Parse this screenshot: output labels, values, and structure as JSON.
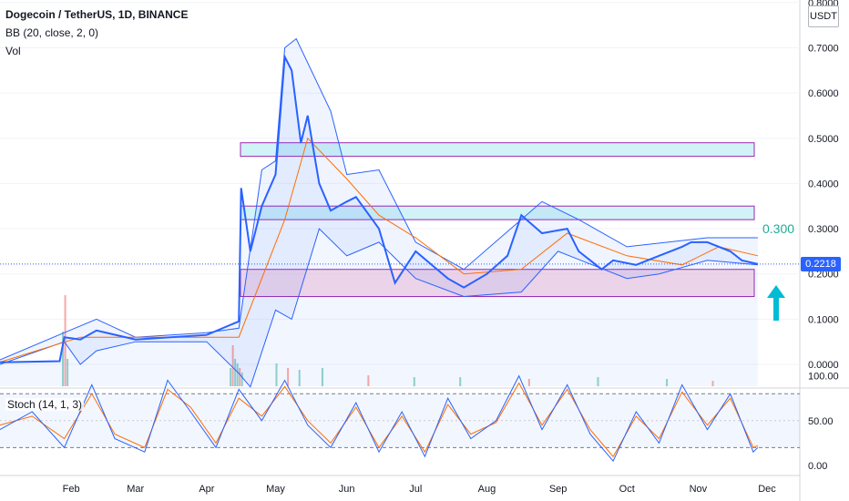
{
  "legend": {
    "title": "Dogecoin / TetherUS, 1D, BINANCE",
    "bb": "BB (20, close, 2, 0)",
    "vol": "Vol",
    "stoch": "Stoch (14, 1, 3)"
  },
  "axis": {
    "currency": "USDT",
    "current_price": "0.2218",
    "level_label": "0.300"
  },
  "colors": {
    "price_line": "#2962ff",
    "bands": "#2962ff",
    "basis": "#ff6d00",
    "stoch_k": "#2962ff",
    "stoch_d": "#ff6d00",
    "green_zone": "#b2ebf2",
    "pink_zone": "#f3c3d8",
    "zone_border": "#9c27b0",
    "arrow": "#00bcd4",
    "vol_up": "#26a69a",
    "vol_down": "#ef5350"
  },
  "chart_data": [
    {
      "type": "line",
      "title": "Dogecoin / TetherUS, 1D, BINANCE",
      "series": [
        {
          "name": "Dogecoin / TetherUS",
          "x": [
            "2021-01-01",
            "2021-01-27",
            "2021-01-29",
            "2021-02-05",
            "2021-02-12",
            "2021-03-01",
            "2021-04-01",
            "2021-04-15",
            "2021-04-16",
            "2021-04-20",
            "2021-04-25",
            "2021-05-01",
            "2021-05-05",
            "2021-05-08",
            "2021-05-12",
            "2021-05-15",
            "2021-05-20",
            "2021-05-25",
            "2021-06-01",
            "2021-06-05",
            "2021-06-15",
            "2021-06-22",
            "2021-07-01",
            "2021-07-15",
            "2021-07-22",
            "2021-08-01",
            "2021-08-10",
            "2021-08-16",
            "2021-08-25",
            "2021-09-05",
            "2021-09-10",
            "2021-09-20",
            "2021-09-25",
            "2021-10-05",
            "2021-10-15",
            "2021-10-25",
            "2021-10-29",
            "2021-11-05",
            "2021-11-15",
            "2021-11-20",
            "2021-11-27"
          ],
          "values": [
            0.0047,
            0.007,
            0.06,
            0.055,
            0.075,
            0.055,
            0.065,
            0.095,
            0.39,
            0.25,
            0.35,
            0.42,
            0.68,
            0.65,
            0.49,
            0.55,
            0.4,
            0.34,
            0.36,
            0.37,
            0.3,
            0.18,
            0.25,
            0.19,
            0.17,
            0.2,
            0.24,
            0.33,
            0.29,
            0.3,
            0.25,
            0.21,
            0.23,
            0.22,
            0.24,
            0.26,
            0.27,
            0.27,
            0.25,
            0.23,
            0.2218
          ]
        },
        {
          "name": "Upper Band",
          "x": [
            "2021-01-01",
            "2021-01-29",
            "2021-02-12",
            "2021-03-01",
            "2021-04-01",
            "2021-04-15",
            "2021-04-25",
            "2021-05-01",
            "2021-05-05",
            "2021-05-10",
            "2021-05-25",
            "2021-06-01",
            "2021-06-15",
            "2021-07-01",
            "2021-07-22",
            "2021-08-25",
            "2021-09-10",
            "2021-10-01",
            "2021-11-05",
            "2021-11-27"
          ],
          "values": [
            0.01,
            0.07,
            0.1,
            0.06,
            0.07,
            0.08,
            0.43,
            0.45,
            0.7,
            0.72,
            0.56,
            0.42,
            0.43,
            0.27,
            0.21,
            0.36,
            0.32,
            0.26,
            0.28,
            0.28
          ]
        },
        {
          "name": "Basis",
          "x": [
            "2021-01-01",
            "2021-02-05",
            "2021-03-01",
            "2021-04-01",
            "2021-04-15",
            "2021-05-05",
            "2021-05-15",
            "2021-06-01",
            "2021-06-15",
            "2021-07-01",
            "2021-07-22",
            "2021-08-16",
            "2021-09-05",
            "2021-10-01",
            "2021-10-25",
            "2021-11-10",
            "2021-11-27"
          ],
          "values": [
            0.005,
            0.06,
            0.06,
            0.06,
            0.06,
            0.32,
            0.5,
            0.41,
            0.33,
            0.28,
            0.2,
            0.21,
            0.29,
            0.24,
            0.22,
            0.26,
            0.24
          ]
        },
        {
          "name": "Lower Band",
          "x": [
            "2021-01-01",
            "2021-01-29",
            "2021-02-05",
            "2021-02-12",
            "2021-03-01",
            "2021-04-01",
            "2021-04-15",
            "2021-04-20",
            "2021-05-01",
            "2021-05-08",
            "2021-05-20",
            "2021-06-01",
            "2021-06-15",
            "2021-07-01",
            "2021-07-22",
            "2021-08-16",
            "2021-09-01",
            "2021-10-01",
            "2021-10-15",
            "2021-11-05",
            "2021-11-27"
          ],
          "values": [
            0.0,
            0.05,
            0.0,
            0.03,
            0.05,
            0.05,
            -0.02,
            -0.05,
            0.12,
            0.1,
            0.3,
            0.24,
            0.27,
            0.19,
            0.15,
            0.16,
            0.25,
            0.19,
            0.2,
            0.23,
            0.22
          ]
        }
      ],
      "zones": [
        {
          "from": 0.46,
          "to": 0.49,
          "color": "#b2ebf2"
        },
        {
          "from": 0.32,
          "to": 0.35,
          "color": "#b2ebf2"
        },
        {
          "from": 0.15,
          "to": 0.21,
          "color": "#f3c3d8"
        }
      ],
      "x_ticks": [
        "Feb",
        "Mar",
        "Apr",
        "May",
        "Jun",
        "Jul",
        "Aug",
        "Sep",
        "Oct",
        "Nov",
        "Dec"
      ],
      "y_ticks": [
        "0.8000",
        "0.7000",
        "0.6000",
        "0.5000",
        "0.4000",
        "0.3000",
        "0.2000",
        "0.1000",
        "0.0000"
      ],
      "ylim": [
        -0.05,
        0.8
      ],
      "grid": true
    },
    {
      "type": "line",
      "title": "Stoch (14, 1, 3)",
      "series": [
        {
          "name": "%K",
          "x": [
            "2021-01-01",
            "2021-01-15",
            "2021-01-29",
            "2021-02-10",
            "2021-02-20",
            "2021-03-05",
            "2021-03-15",
            "2021-03-25",
            "2021-04-05",
            "2021-04-15",
            "2021-04-25",
            "2021-05-05",
            "2021-05-15",
            "2021-05-25",
            "2021-06-05",
            "2021-06-15",
            "2021-06-25",
            "2021-07-05",
            "2021-07-15",
            "2021-07-25",
            "2021-08-05",
            "2021-08-15",
            "2021-08-25",
            "2021-09-05",
            "2021-09-15",
            "2021-09-25",
            "2021-10-05",
            "2021-10-15",
            "2021-10-25",
            "2021-11-05",
            "2021-11-15",
            "2021-11-25",
            "2021-11-27"
          ],
          "values": [
            40,
            60,
            20,
            90,
            30,
            15,
            95,
            60,
            20,
            85,
            50,
            95,
            45,
            20,
            70,
            15,
            60,
            10,
            75,
            30,
            50,
            100,
            40,
            90,
            35,
            5,
            60,
            25,
            90,
            40,
            80,
            15,
            20
          ]
        },
        {
          "name": "%D",
          "x": [
            "2021-01-01",
            "2021-01-15",
            "2021-01-29",
            "2021-02-10",
            "2021-02-20",
            "2021-03-05",
            "2021-03-15",
            "2021-03-25",
            "2021-04-05",
            "2021-04-15",
            "2021-04-25",
            "2021-05-05",
            "2021-05-15",
            "2021-05-25",
            "2021-06-05",
            "2021-06-15",
            "2021-06-25",
            "2021-07-05",
            "2021-07-15",
            "2021-07-25",
            "2021-08-05",
            "2021-08-15",
            "2021-08-25",
            "2021-09-05",
            "2021-09-15",
            "2021-09-25",
            "2021-10-05",
            "2021-10-15",
            "2021-10-25",
            "2021-11-05",
            "2021-11-15",
            "2021-11-25",
            "2021-11-27"
          ],
          "values": [
            45,
            55,
            30,
            80,
            35,
            20,
            85,
            65,
            25,
            75,
            55,
            88,
            50,
            25,
            65,
            20,
            55,
            15,
            68,
            35,
            48,
            92,
            45,
            85,
            40,
            10,
            55,
            30,
            82,
            45,
            75,
            20,
            22
          ]
        }
      ],
      "y_ticks": [
        "100.00",
        "50.00",
        "0.00"
      ],
      "ylim": [
        -10,
        105
      ]
    }
  ]
}
